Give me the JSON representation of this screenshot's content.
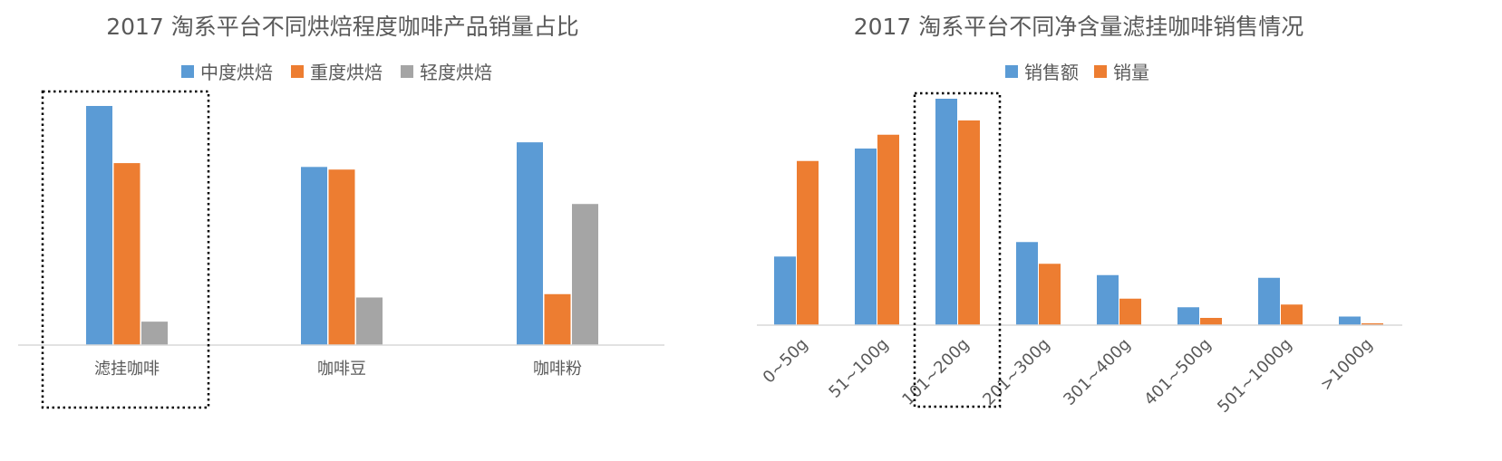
{
  "chart_data": [
    {
      "type": "bar",
      "title": "2017 淘系平台不同烘焙程度咖啡产品销量占比",
      "legend_position": "top",
      "categories": [
        "滤挂咖啡",
        "咖啡豆",
        "咖啡粉"
      ],
      "series": [
        {
          "name": "中度烘焙",
          "color": "#5B9BD5",
          "values": [
            100,
            74.5,
            84.8
          ]
        },
        {
          "name": "重度烘焙",
          "color": "#ED7D31",
          "values": [
            76.1,
            73.4,
            21.3
          ]
        },
        {
          "name": "轻度烘焙",
          "color": "#A5A5A5",
          "values": [
            9.8,
            19.9,
            59
          ]
        }
      ],
      "ylim": [
        0,
        100
      ],
      "grid": false,
      "annotation": {
        "type": "dotted-box",
        "category": "滤挂咖啡"
      }
    },
    {
      "type": "bar",
      "title": "2017 淘系平台不同净含量滤挂咖啡销售情况",
      "legend_position": "top",
      "categories": [
        "0~50g",
        "51~100g",
        "101~200g",
        "201~300g",
        "301~400g",
        "401~500g",
        "501~1000g",
        ">1000g"
      ],
      "series": [
        {
          "name": "销售额",
          "color": "#5B9BD5",
          "values": [
            30.3,
            78,
            100,
            36.7,
            22.1,
            7.9,
            20.9,
            3.8
          ]
        },
        {
          "name": "销量",
          "color": "#ED7D31",
          "values": [
            72.5,
            84.1,
            90.4,
            27.1,
            11.7,
            3.2,
            9.1,
            0.8
          ]
        }
      ],
      "ylim": [
        0,
        100
      ],
      "grid": false,
      "annotation": {
        "type": "dotted-box",
        "category": "101~200g"
      }
    }
  ]
}
